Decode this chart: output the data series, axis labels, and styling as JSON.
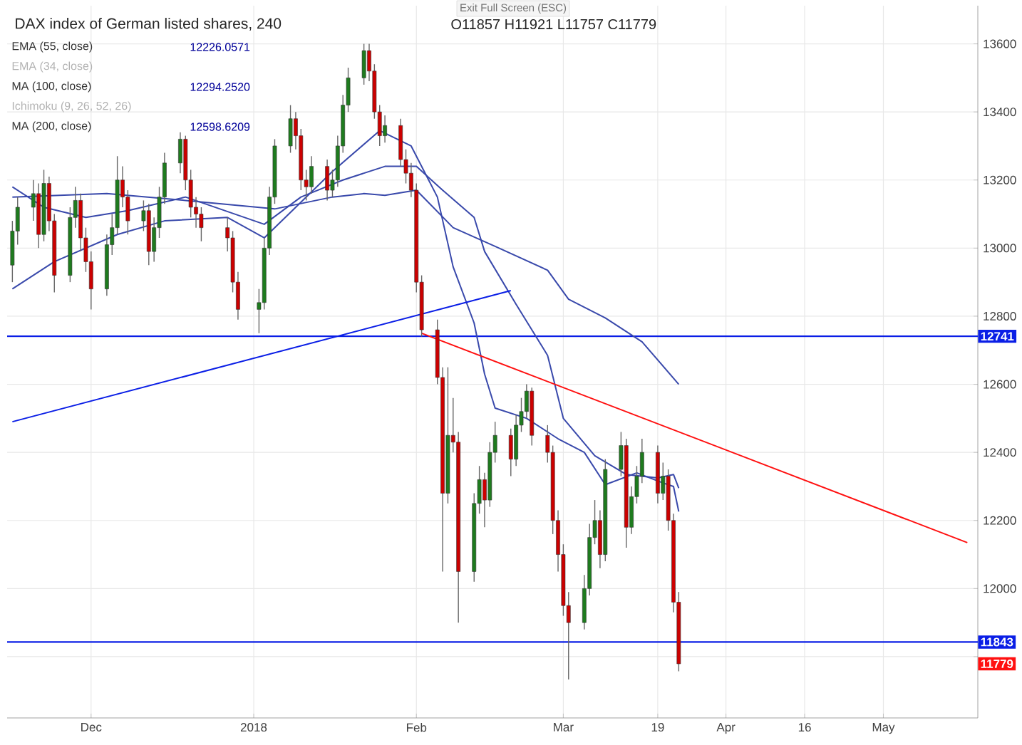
{
  "chart_data": {
    "type": "candlestick",
    "title": "DAX index of German listed shares, 240",
    "subtitle": "O11857 H11921 L11757 C11779",
    "annotations": [
      "Exit Full Screen (ESC)",
      "EMA (55, close)",
      "12226.0571",
      "EMA (34, close)",
      "MA (100, close)",
      "12294.2520",
      "Ichimoku (9, 26, 52, 26)",
      "MA (200, close)",
      "12598.6209",
      {
        "text": "11779",
        "y": 11779
      }
    ],
    "x": [
      "2017-11-16",
      "2017-11-17",
      "2017-11-20",
      "2017-11-21",
      "2017-11-22",
      "2017-11-23",
      "2017-11-24",
      "2017-11-27",
      "2017-11-28",
      "2017-11-29",
      "2017-11-30",
      "2017-12-01",
      "2017-12-04",
      "2017-12-05",
      "2017-12-06",
      "2017-12-07",
      "2017-12-08",
      "2017-12-11",
      "2017-12-12",
      "2017-12-13",
      "2017-12-14",
      "2017-12-15",
      "2017-12-18",
      "2017-12-19",
      "2017-12-20",
      "2017-12-21",
      "2017-12-22",
      "2017-12-27",
      "2017-12-28",
      "2017-12-29",
      "2018-01-02",
      "2018-01-03",
      "2018-01-04",
      "2018-01-05",
      "2018-01-08",
      "2018-01-09",
      "2018-01-10",
      "2018-01-11",
      "2018-01-12",
      "2018-01-15",
      "2018-01-16",
      "2018-01-17",
      "2018-01-18",
      "2018-01-19",
      "2018-01-22",
      "2018-01-23",
      "2018-01-24",
      "2018-01-25",
      "2018-01-26",
      "2018-01-29",
      "2018-01-30",
      "2018-01-31",
      "2018-02-01",
      "2018-02-02",
      "2018-02-05",
      "2018-02-06",
      "2018-02-07",
      "2018-02-08",
      "2018-02-09",
      "2018-02-12",
      "2018-02-13",
      "2018-02-14",
      "2018-02-15",
      "2018-02-16",
      "2018-02-19",
      "2018-02-20",
      "2018-02-21",
      "2018-02-22",
      "2018-02-23",
      "2018-02-26",
      "2018-02-27",
      "2018-02-28",
      "2018-03-01",
      "2018-03-02",
      "2018-03-05",
      "2018-03-06",
      "2018-03-07",
      "2018-03-08",
      "2018-03-09",
      "2018-03-12",
      "2018-03-13",
      "2018-03-14",
      "2018-03-15",
      "2018-03-16",
      "2018-03-19",
      "2018-03-20",
      "2018-03-21",
      "2018-03-22",
      "2018-03-23"
    ],
    "ohlc": [
      [
        12950,
        13080,
        12900,
        13050
      ],
      [
        13050,
        13150,
        13010,
        13120
      ],
      [
        13120,
        13200,
        13080,
        13160
      ],
      [
        13160,
        13190,
        13000,
        13040
      ],
      [
        13040,
        13230,
        13020,
        13190
      ],
      [
        13190,
        13210,
        13050,
        13080
      ],
      [
        13080,
        13100,
        12870,
        12920
      ],
      [
        12920,
        13120,
        12900,
        13090
      ],
      [
        13090,
        13180,
        13060,
        13140
      ],
      [
        13140,
        13160,
        12990,
        13030
      ],
      [
        13030,
        13060,
        12930,
        12960
      ],
      [
        12960,
        12990,
        12820,
        12880
      ],
      [
        12880,
        13040,
        12860,
        13010
      ],
      [
        13010,
        13100,
        12980,
        13060
      ],
      [
        13060,
        13270,
        13040,
        13200
      ],
      [
        13200,
        13240,
        13120,
        13150
      ],
      [
        13150,
        13170,
        13040,
        13080
      ],
      [
        13080,
        13140,
        13050,
        13110
      ],
      [
        13110,
        13130,
        12950,
        12990
      ],
      [
        12990,
        13090,
        12960,
        13060
      ],
      [
        13060,
        13180,
        13030,
        13150
      ],
      [
        13150,
        13280,
        13130,
        13250
      ],
      [
        13250,
        13340,
        13220,
        13320
      ],
      [
        13320,
        13330,
        13170,
        13200
      ],
      [
        13200,
        13230,
        13090,
        13120
      ],
      [
        13120,
        13150,
        13060,
        13100
      ],
      [
        13100,
        13120,
        13020,
        13060
      ],
      [
        13060,
        13090,
        12990,
        13030
      ],
      [
        13030,
        13050,
        12870,
        12900
      ],
      [
        12900,
        12930,
        12790,
        12820
      ],
      [
        12820,
        12880,
        12750,
        12840
      ],
      [
        12840,
        13030,
        12820,
        13000
      ],
      [
        13000,
        13180,
        12980,
        13150
      ],
      [
        13150,
        13320,
        13130,
        13300
      ],
      [
        13300,
        13420,
        13280,
        13380
      ],
      [
        13380,
        13400,
        13290,
        13330
      ],
      [
        13330,
        13350,
        13170,
        13200
      ],
      [
        13200,
        13230,
        13140,
        13180
      ],
      [
        13180,
        13270,
        13160,
        13240
      ],
      [
        13240,
        13260,
        13140,
        13170
      ],
      [
        13170,
        13230,
        13150,
        13200
      ],
      [
        13200,
        13330,
        13180,
        13300
      ],
      [
        13300,
        13450,
        13280,
        13420
      ],
      [
        13420,
        13530,
        13400,
        13500
      ],
      [
        13500,
        13600,
        13480,
        13580
      ],
      [
        13580,
        13600,
        13490,
        13520
      ],
      [
        13520,
        13540,
        13380,
        13400
      ],
      [
        13400,
        13420,
        13300,
        13330
      ],
      [
        13330,
        13390,
        13310,
        13360
      ],
      [
        13360,
        13380,
        13240,
        13260
      ],
      [
        13260,
        13290,
        13190,
        13220
      ],
      [
        13220,
        13250,
        13150,
        13170
      ],
      [
        13170,
        13190,
        12870,
        12900
      ],
      [
        12900,
        12920,
        12740,
        12760
      ],
      [
        12760,
        12790,
        12600,
        12620
      ],
      [
        12620,
        12650,
        12050,
        12280
      ],
      [
        12280,
        12650,
        12250,
        12450
      ],
      [
        12450,
        12560,
        12400,
        12430
      ],
      [
        12430,
        12460,
        11900,
        12050
      ],
      [
        12050,
        12280,
        12020,
        12250
      ],
      [
        12250,
        12360,
        12220,
        12320
      ],
      [
        12320,
        12340,
        12180,
        12260
      ],
      [
        12260,
        12430,
        12240,
        12400
      ],
      [
        12400,
        12490,
        12370,
        12450
      ],
      [
        12450,
        12470,
        12330,
        12380
      ],
      [
        12380,
        12510,
        12360,
        12480
      ],
      [
        12480,
        12560,
        12460,
        12520
      ],
      [
        12520,
        12600,
        12500,
        12580
      ],
      [
        12580,
        12590,
        12420,
        12450
      ],
      [
        12450,
        12480,
        12370,
        12400
      ],
      [
        12400,
        12420,
        12160,
        12200
      ],
      [
        12200,
        12230,
        12050,
        12100
      ],
      [
        12100,
        12130,
        11920,
        11950
      ],
      [
        11950,
        11990,
        11733,
        11900
      ],
      [
        11900,
        12040,
        11880,
        12000
      ],
      [
        12000,
        12190,
        11980,
        12150
      ],
      [
        12150,
        12260,
        12130,
        12200
      ],
      [
        12200,
        12230,
        12060,
        12100
      ],
      [
        12100,
        12380,
        12080,
        12350
      ],
      [
        12350,
        12460,
        12330,
        12420
      ],
      [
        12420,
        12440,
        12120,
        12180
      ],
      [
        12180,
        12300,
        12160,
        12270
      ],
      [
        12270,
        12360,
        12250,
        12330
      ],
      [
        12330,
        12440,
        12310,
        12400
      ],
      [
        12400,
        12420,
        12250,
        12280
      ],
      [
        12280,
        12370,
        12260,
        12330
      ],
      [
        12330,
        12350,
        12170,
        12200
      ],
      [
        12200,
        12220,
        11930,
        11960
      ],
      [
        11960,
        11990,
        11757,
        11779
      ]
    ],
    "series": [
      {
        "type": "line",
        "color": "#3949ab",
        "x": [
          "2017-11-16",
          "2017-12-04",
          "2017-12-19",
          "2018-01-05",
          "2018-01-16",
          "2018-01-22",
          "2018-01-26",
          "2018-02-01",
          "2018-02-08",
          "2018-02-16",
          "2018-02-26",
          "2018-03-02",
          "2018-03-09",
          "2018-03-16",
          "2018-03-23"
        ],
        "values": [
          13150,
          13160,
          13140,
          13115,
          13150,
          13160,
          13155,
          13170,
          13060,
          13005,
          12935,
          12850,
          12795,
          12725,
          12600
        ]
      },
      {
        "type": "line",
        "color": "#3949ab",
        "x": [
          "2017-11-16",
          "2017-11-22",
          "2017-11-30",
          "2017-12-08",
          "2017-12-19",
          "2018-01-03",
          "2018-01-10",
          "2018-01-18",
          "2018-01-26",
          "2018-02-01",
          "2018-02-06",
          "2018-02-12",
          "2018-02-14",
          "2018-02-20",
          "2018-02-26",
          "2018-03-01",
          "2018-03-07",
          "2018-03-13",
          "2018-03-19",
          "2018-03-22",
          "2018-03-23"
        ],
        "values": [
          13180,
          13120,
          13090,
          13110,
          13150,
          13070,
          13150,
          13200,
          13240,
          13240,
          13170,
          13090,
          12990,
          12835,
          12685,
          12500,
          12390,
          12335,
          12325,
          12335,
          12295
        ]
      },
      {
        "type": "line",
        "color": "#3949ab",
        "x": [
          "2017-11-16",
          "2017-11-24",
          "2017-12-06",
          "2017-12-15",
          "2017-12-27",
          "2018-01-03",
          "2018-01-09",
          "2018-01-16",
          "2018-01-25",
          "2018-01-31",
          "2018-02-05",
          "2018-02-08",
          "2018-02-12",
          "2018-02-14",
          "2018-02-16",
          "2018-02-22",
          "2018-02-28",
          "2018-03-05",
          "2018-03-09",
          "2018-03-15",
          "2018-03-20",
          "2018-03-22",
          "2018-03-23"
        ],
        "values": [
          12880,
          12960,
          13040,
          13080,
          13090,
          13030,
          13120,
          13225,
          13345,
          13300,
          13150,
          12945,
          12780,
          12630,
          12530,
          12500,
          12440,
          12400,
          12305,
          12340,
          12310,
          12300,
          12226
        ]
      },
      {
        "type": "line",
        "color": "#0a1ee6",
        "x": [
          "2017-11-16",
          "2018-02-19"
        ],
        "values": [
          12490,
          12875
        ]
      },
      {
        "type": "line",
        "color": "#ff1010",
        "x": [
          "2018-02-02",
          "2018-05-17"
        ],
        "values": [
          12750,
          12135
        ]
      }
    ],
    "ref_lines": [
      {
        "axis": "y",
        "value": 12741,
        "label": "12741",
        "color": "#0a1ee6"
      },
      {
        "axis": "y",
        "value": 11843,
        "label": "11843",
        "color": "#0a1ee6"
      }
    ],
    "xlim": [
      "2017-11-15",
      "2018-05-19"
    ],
    "ylim": [
      11620,
      13712
    ],
    "xticks": [
      {
        "value": "2017-12-01",
        "label": "Dec"
      },
      {
        "value": "2018-01-01",
        "label": "2018"
      },
      {
        "value": "2018-02-01",
        "label": "Feb"
      },
      {
        "value": "2018-03-01",
        "label": "Mar"
      },
      {
        "value": "2018-03-19",
        "label": "19"
      },
      {
        "value": "2018-04-01",
        "label": "Apr"
      },
      {
        "value": "2018-04-16",
        "label": "16"
      },
      {
        "value": "2018-05-01",
        "label": "May"
      }
    ],
    "yticks": [
      {
        "value": 11800,
        "label": null
      },
      12000,
      12200,
      12400,
      12600,
      12800,
      13000,
      13200,
      13400,
      13600
    ],
    "grid": true
  }
}
